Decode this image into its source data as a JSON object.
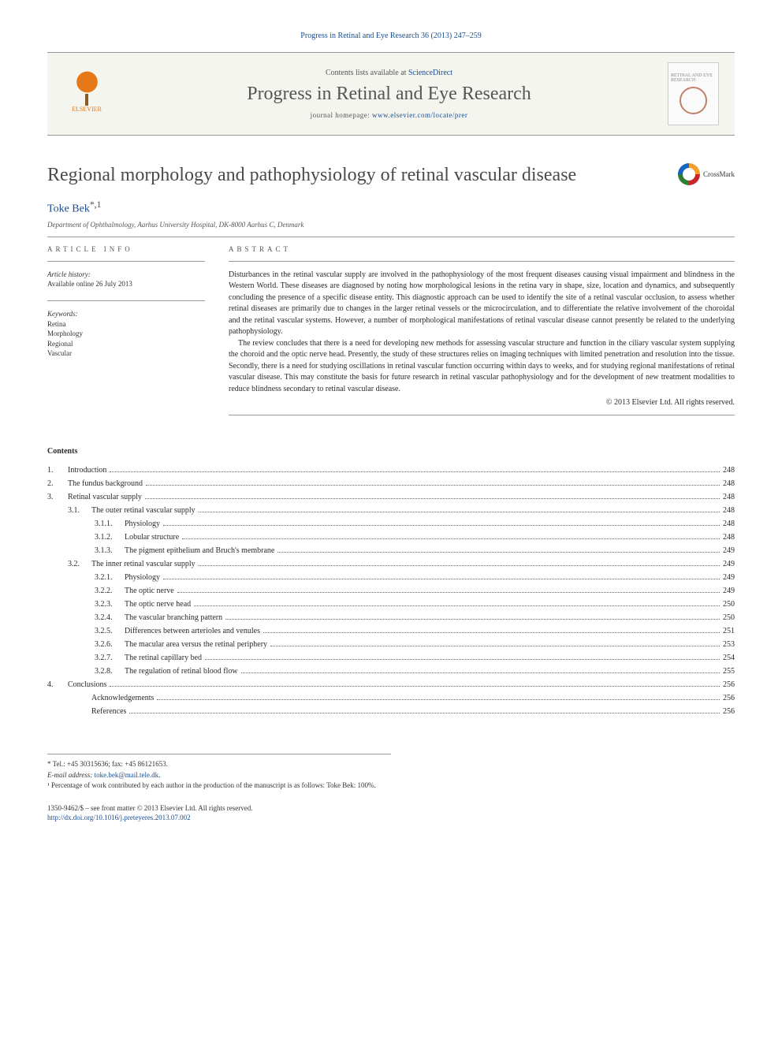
{
  "citation": "Progress in Retinal and Eye Research 36 (2013) 247–259",
  "header": {
    "contents_prefix": "Contents lists available at ",
    "contents_link": "ScienceDirect",
    "journal_title": "Progress in Retinal and Eye Research",
    "homepage_prefix": "journal homepage: ",
    "homepage_url": "www.elsevier.com/locate/prer",
    "publisher": "ELSEVIER",
    "cover_text": "RETINAL AND EYE RESEARCH"
  },
  "crossmark_label": "CrossMark",
  "article": {
    "title": "Regional morphology and pathophysiology of retinal vascular disease",
    "author": "Toke Bek",
    "author_marks": "*,1",
    "affiliation": "Department of Ophthalmology, Aarhus University Hospital, DK-8000 Aarhus C, Denmark"
  },
  "info": {
    "heading": "ARTICLE INFO",
    "history_label": "Article history:",
    "history_value": "Available online 26 July 2013",
    "keywords_label": "Keywords:",
    "keywords": [
      "Retina",
      "Morphology",
      "Regional",
      "Vascular"
    ]
  },
  "abstract": {
    "heading": "ABSTRACT",
    "p1": "Disturbances in the retinal vascular supply are involved in the pathophysiology of the most frequent diseases causing visual impairment and blindness in the Western World. These diseases are diagnosed by noting how morphological lesions in the retina vary in shape, size, location and dynamics, and subsequently concluding the presence of a specific disease entity. This diagnostic approach can be used to identify the site of a retinal vascular occlusion, to assess whether retinal diseases are primarily due to changes in the larger retinal vessels or the microcirculation, and to differentiate the relative involvement of the choroidal and the retinal vascular systems. However, a number of morphological manifestations of retinal vascular disease cannot presently be related to the underlying pathophysiology.",
    "p2": "The review concludes that there is a need for developing new methods for assessing vascular structure and function in the ciliary vascular system supplying the choroid and the optic nerve head. Presently, the study of these structures relies on imaging techniques with limited penetration and resolution into the tissue. Secondly, there is a need for studying oscillations in retinal vascular function occurring within days to weeks, and for studying regional manifestations of retinal vascular disease. This may constitute the basis for future research in retinal vascular pathophysiology and for the development of new treatment modalities to reduce blindness secondary to retinal vascular disease.",
    "copyright": "© 2013 Elsevier Ltd. All rights reserved."
  },
  "contents": {
    "heading": "Contents",
    "items": [
      {
        "lvl": 1,
        "num": "1.",
        "label": "Introduction",
        "page": "248"
      },
      {
        "lvl": 1,
        "num": "2.",
        "label": "The fundus background",
        "page": "248"
      },
      {
        "lvl": 1,
        "num": "3.",
        "label": "Retinal vascular supply",
        "page": "248"
      },
      {
        "lvl": 2,
        "num": "3.1.",
        "label": "The outer retinal vascular supply",
        "page": "248"
      },
      {
        "lvl": 3,
        "num": "3.1.1.",
        "label": "Physiology",
        "page": "248"
      },
      {
        "lvl": 3,
        "num": "3.1.2.",
        "label": "Lobular structure",
        "page": "248"
      },
      {
        "lvl": 3,
        "num": "3.1.3.",
        "label": "The pigment epithelium and Bruch's membrane",
        "page": "249"
      },
      {
        "lvl": 2,
        "num": "3.2.",
        "label": "The inner retinal vascular supply",
        "page": "249"
      },
      {
        "lvl": 3,
        "num": "3.2.1.",
        "label": "Physiology",
        "page": "249"
      },
      {
        "lvl": 3,
        "num": "3.2.2.",
        "label": "The optic nerve",
        "page": "249"
      },
      {
        "lvl": 3,
        "num": "3.2.3.",
        "label": "The optic nerve head",
        "page": "250"
      },
      {
        "lvl": 3,
        "num": "3.2.4.",
        "label": "The vascular branching pattern",
        "page": "250"
      },
      {
        "lvl": 3,
        "num": "3.2.5.",
        "label": "Differences between arterioles and venules",
        "page": "251"
      },
      {
        "lvl": 3,
        "num": "3.2.6.",
        "label": "The macular area versus the retinal periphery",
        "page": "253"
      },
      {
        "lvl": 3,
        "num": "3.2.7.",
        "label": "The retinal capillary bed",
        "page": "254"
      },
      {
        "lvl": 3,
        "num": "3.2.8.",
        "label": "The regulation of retinal blood flow",
        "page": "255"
      },
      {
        "lvl": 1,
        "num": "4.",
        "label": "Conclusions",
        "page": "256"
      },
      {
        "lvl": 2,
        "num": "",
        "label": "Acknowledgements",
        "page": "256"
      },
      {
        "lvl": 2,
        "num": "",
        "label": "References",
        "page": "256"
      }
    ]
  },
  "footnotes": {
    "corr": "* Tel.: +45 30315636; fax: +45 86121653.",
    "email_label": "E-mail address:",
    "email": "toke.bek@mail.tele.dk",
    "note1": "¹ Percentage of work contributed by each author in the production of the manuscript is as follows: Toke Bek: 100%."
  },
  "footer": {
    "line1": "1350-9462/$ – see front matter © 2013 Elsevier Ltd. All rights reserved.",
    "doi": "http://dx.doi.org/10.1016/j.preteyeres.2013.07.002"
  },
  "colors": {
    "link": "#1a4d8f",
    "elsevier_orange": "#e67817",
    "text": "#2a2a2a"
  },
  "typography": {
    "body_font": "Georgia, serif",
    "title_size_pt": 18,
    "body_size_pt": 7.5
  }
}
